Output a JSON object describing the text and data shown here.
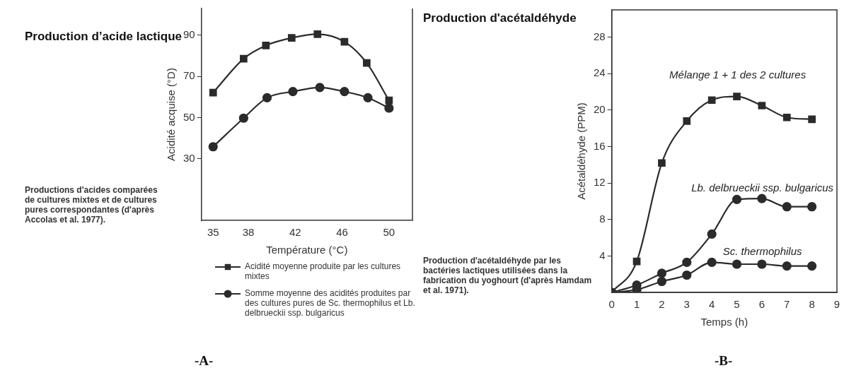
{
  "chart_data": [
    {
      "type": "line",
      "title": "Production d’acide lactique",
      "xlabel": "Température (°C)",
      "ylabel": "Acidité acquise (°D)",
      "xlim": [
        34,
        52
      ],
      "xticks": [
        35,
        38,
        42,
        46,
        50
      ],
      "ylim": [
        0,
        103
      ],
      "yticks": [
        30,
        50,
        70,
        90
      ],
      "grid": false,
      "legend": "bottom",
      "series": [
        {
          "name": "Acidité moyenne produite par les cultures mixtes",
          "color": "#2b2b2b",
          "marker": "square",
          "x": [
            35,
            37.6,
            39.5,
            41.7,
            43.9,
            46.2,
            48.1,
            50
          ],
          "values": [
            62.1,
            78.6,
            85.0,
            88.7,
            90.5,
            86.8,
            76.5,
            58.3
          ]
        },
        {
          "name": "Somme moyenne des acidités produites par des cultures pures de Sc. thermophilus et Lb.  delbrueckii ssp. bulgaricus",
          "color": "#2b2b2b",
          "marker": "circle",
          "x": [
            35,
            37.6,
            39.6,
            41.8,
            44.1,
            46.2,
            48.2,
            50
          ],
          "values": [
            35.8,
            49.7,
            59.6,
            62.6,
            64.6,
            62.6,
            59.6,
            54.6
          ]
        }
      ],
      "annotations": [
        "Productions d'acides comparées de cultures mixtes  et de cultures pures correspondantes (d'après Accolas et al. 1977).",
        "-A-"
      ]
    },
    {
      "type": "line",
      "title": "Production d'acétaldéhyde",
      "xlabel": "Temps (h)",
      "ylabel": "Acétaldéhyde (PPM)",
      "xlim": [
        0,
        9
      ],
      "xticks": [
        0,
        1,
        2,
        3,
        4,
        5,
        6,
        7,
        8,
        9
      ],
      "ylim": [
        0,
        31
      ],
      "yticks": [
        4,
        8,
        12,
        16,
        20,
        24,
        28
      ],
      "grid": false,
      "legend": false,
      "series": [
        {
          "name": "Mélange 1 + 1 des 2 cultures",
          "color": "#2b2b2b",
          "marker": "square",
          "x": [
            0,
            1,
            2,
            3,
            4,
            5,
            6,
            7,
            8
          ],
          "values": [
            0,
            3.4,
            14.2,
            18.8,
            21.1,
            21.5,
            20.5,
            19.2,
            19.0
          ]
        },
        {
          "name": "Lb. delbrueckii ssp. bulgaricus",
          "color": "#2b2b2b",
          "marker": "circle",
          "x": [
            0,
            1,
            2,
            3,
            4,
            5,
            6,
            7,
            8
          ],
          "values": [
            0,
            0.8,
            2.1,
            3.3,
            6.4,
            10.2,
            10.3,
            9.4,
            9.4
          ]
        },
        {
          "name": "Sc. thermophilus",
          "color": "#2b2b2b",
          "marker": "circle",
          "x": [
            0,
            1,
            2,
            3,
            4,
            5,
            6,
            7,
            8
          ],
          "values": [
            0,
            0.3,
            1.2,
            1.9,
            3.3,
            3.1,
            3.1,
            2.9,
            2.9
          ]
        }
      ],
      "annotations": [
        "Production d'acétaldéhyde par les bactéries lactiques utilisées dans la fabrication du yoghourt (d'après Hamdam et al. 1971).",
        "-B-"
      ]
    }
  ]
}
